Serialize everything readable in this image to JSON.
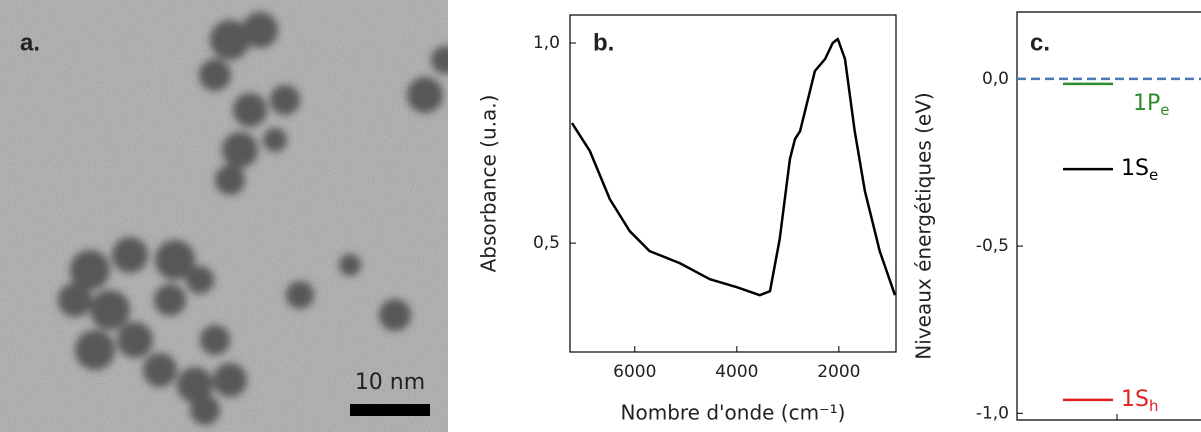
{
  "image": {
    "label": "a.",
    "scale_bar": "10 nm"
  },
  "chart_data": [
    {
      "type": "line",
      "title": "b.",
      "x_label": "Nombre d'onde (cm⁻¹)",
      "y_label": "Absorbance (u.a.)",
      "x": [
        7230,
        6880,
        6490,
        6100,
        5710,
        5120,
        4530,
        4000,
        3550,
        3350,
        3160,
        2960,
        2860,
        2760,
        2470,
        2270,
        2120,
        2020,
        1880,
        1690,
        1490,
        1200,
        900
      ],
      "values": [
        0.8,
        0.73,
        0.61,
        0.53,
        0.48,
        0.45,
        0.41,
        0.39,
        0.37,
        0.38,
        0.51,
        0.71,
        0.76,
        0.78,
        0.93,
        0.96,
        1.0,
        1.01,
        0.96,
        0.78,
        0.63,
        0.48,
        0.37
      ],
      "color": "#000000",
      "xlim": [
        7270,
        880
      ],
      "xticks": [
        6000,
        4000,
        2000
      ],
      "ylim": [
        0.228,
        1.07
      ],
      "yticks": [
        {
          "value": 1,
          "label": "1,0"
        },
        {
          "value": 0.5,
          "label": "0,5"
        }
      ]
    },
    {
      "type": "levels",
      "title": "c.",
      "y_label": "Niveaux énergétiques (eV)",
      "levels": [
        {
          "label": "1P",
          "subscript": "e",
          "value": -0.015,
          "color": "#2e8b2e"
        },
        {
          "label": "1S",
          "subscript": "e",
          "value": -0.27,
          "color": "#000000"
        },
        {
          "label": "1S",
          "subscript": "h",
          "value": -0.96,
          "color": "#e02020"
        }
      ],
      "zero_line": {
        "value": 0,
        "color": "#4a7ab5"
      },
      "ylim": [
        -1.02,
        0.2
      ],
      "yticks": [
        {
          "value": 0,
          "label": "0,0"
        },
        {
          "value": -0.5,
          "label": "-0,5"
        },
        {
          "value": -1,
          "label": "-1,0"
        }
      ]
    }
  ]
}
